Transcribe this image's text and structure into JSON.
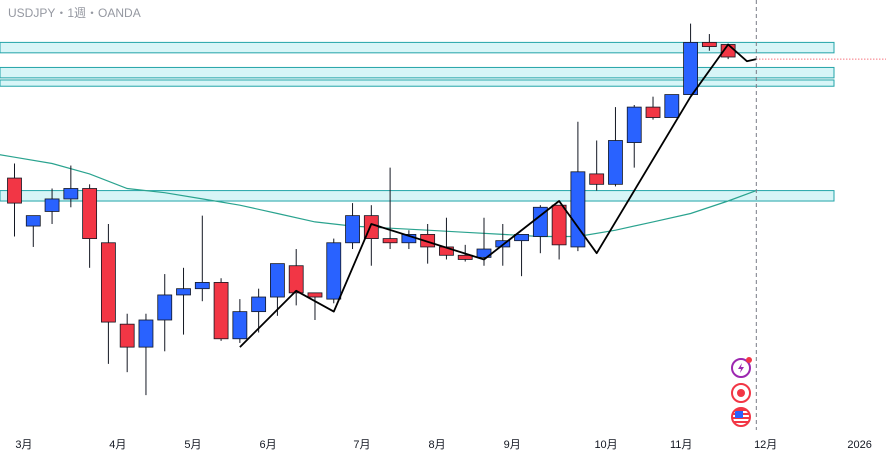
{
  "header": {
    "symbol_line": "USDJPY・1週・OANDA"
  },
  "colors": {
    "up": "#2962ff",
    "down": "#f23645",
    "zone_fill": "#d7f5f7",
    "zone_stroke": "#22a4a8",
    "moving_average": "#2aa38f",
    "trend_line": "#000000",
    "current_price_line": "#f23645",
    "cursor_line": "#787b86"
  },
  "icons": [
    "lightning-icon",
    "record-icon",
    "us-flag-icon"
  ],
  "chart_data": {
    "type": "candlestick",
    "title": "USDJPY・1週・OANDA",
    "x_tick_labels": [
      "3月",
      "4月",
      "5月",
      "6月",
      "7月",
      "8月",
      "9月",
      "10月",
      "11月",
      "12月",
      "2026"
    ],
    "x_tick_week_index": [
      0.5,
      5.5,
      9.5,
      13.5,
      18.5,
      22.5,
      26.5,
      31.5,
      35.5,
      40.0,
      45.0
    ],
    "ylim": [
      139.0,
      158.5
    ],
    "grid": false,
    "candles": [
      {
        "o": 150.4,
        "h": 151.1,
        "l": 147.6,
        "c": 149.2
      },
      {
        "o": 148.1,
        "h": 148.6,
        "l": 147.1,
        "c": 148.6
      },
      {
        "o": 148.8,
        "h": 149.9,
        "l": 148.2,
        "c": 149.4
      },
      {
        "o": 149.4,
        "h": 151.0,
        "l": 149.0,
        "c": 149.9
      },
      {
        "o": 149.9,
        "h": 150.1,
        "l": 146.1,
        "c": 147.5
      },
      {
        "o": 147.3,
        "h": 148.2,
        "l": 141.5,
        "c": 143.5
      },
      {
        "o": 143.4,
        "h": 143.9,
        "l": 141.1,
        "c": 142.3
      },
      {
        "o": 142.3,
        "h": 143.9,
        "l": 140.0,
        "c": 143.6
      },
      {
        "o": 143.6,
        "h": 145.8,
        "l": 142.1,
        "c": 144.8
      },
      {
        "o": 144.8,
        "h": 146.1,
        "l": 142.9,
        "c": 145.1
      },
      {
        "o": 145.1,
        "h": 148.6,
        "l": 144.5,
        "c": 145.4
      },
      {
        "o": 145.4,
        "h": 145.6,
        "l": 142.6,
        "c": 142.7
      },
      {
        "o": 142.7,
        "h": 144.6,
        "l": 142.5,
        "c": 144.0
      },
      {
        "o": 144.0,
        "h": 145.1,
        "l": 143.0,
        "c": 144.7
      },
      {
        "o": 144.7,
        "h": 146.3,
        "l": 143.8,
        "c": 146.3
      },
      {
        "o": 146.2,
        "h": 147.0,
        "l": 144.3,
        "c": 144.9
      },
      {
        "o": 144.9,
        "h": 144.9,
        "l": 143.6,
        "c": 144.7
      },
      {
        "o": 144.6,
        "h": 147.5,
        "l": 144.4,
        "c": 147.3
      },
      {
        "o": 147.3,
        "h": 149.2,
        "l": 147.0,
        "c": 148.6
      },
      {
        "o": 148.6,
        "h": 149.1,
        "l": 146.2,
        "c": 147.5
      },
      {
        "o": 147.5,
        "h": 150.9,
        "l": 147.0,
        "c": 147.3
      },
      {
        "o": 147.3,
        "h": 147.9,
        "l": 147.0,
        "c": 147.7
      },
      {
        "o": 147.7,
        "h": 148.2,
        "l": 146.3,
        "c": 147.1
      },
      {
        "o": 147.1,
        "h": 148.5,
        "l": 146.5,
        "c": 146.7
      },
      {
        "o": 146.7,
        "h": 147.2,
        "l": 146.4,
        "c": 146.5
      },
      {
        "o": 146.6,
        "h": 148.5,
        "l": 146.2,
        "c": 147.0
      },
      {
        "o": 147.1,
        "h": 148.2,
        "l": 146.2,
        "c": 147.4
      },
      {
        "o": 147.4,
        "h": 147.6,
        "l": 145.7,
        "c": 147.7
      },
      {
        "o": 147.6,
        "h": 149.1,
        "l": 146.8,
        "c": 149.0
      },
      {
        "o": 149.1,
        "h": 149.1,
        "l": 146.5,
        "c": 147.2
      },
      {
        "o": 147.1,
        "h": 153.1,
        "l": 146.9,
        "c": 150.7
      },
      {
        "o": 150.6,
        "h": 152.2,
        "l": 149.8,
        "c": 150.1
      },
      {
        "o": 150.1,
        "h": 153.8,
        "l": 150.0,
        "c": 152.2
      },
      {
        "o": 152.1,
        "h": 153.9,
        "l": 150.9,
        "c": 153.8
      },
      {
        "o": 153.8,
        "h": 154.3,
        "l": 153.2,
        "c": 153.3
      },
      {
        "o": 153.3,
        "h": 154.3,
        "l": 153.3,
        "c": 154.4
      },
      {
        "o": 154.4,
        "h": 157.8,
        "l": 154.4,
        "c": 156.9
      },
      {
        "o": 156.9,
        "h": 157.3,
        "l": 156.5,
        "c": 156.7
      },
      {
        "o": 156.8,
        "h": 156.8,
        "l": 156.1,
        "c": 156.2
      }
    ],
    "moving_average": [
      {
        "week": -2,
        "value": 151.7
      },
      {
        "week": 0,
        "value": 151.4
      },
      {
        "week": 2,
        "value": 151.1
      },
      {
        "week": 4,
        "value": 150.6
      },
      {
        "week": 6,
        "value": 149.9
      },
      {
        "week": 8,
        "value": 149.7
      },
      {
        "week": 10,
        "value": 149.4
      },
      {
        "week": 12,
        "value": 149.1
      },
      {
        "week": 14,
        "value": 148.7
      },
      {
        "week": 16,
        "value": 148.3
      },
      {
        "week": 18,
        "value": 148.1
      },
      {
        "week": 20,
        "value": 148.0
      },
      {
        "week": 22,
        "value": 147.9
      },
      {
        "week": 24,
        "value": 147.8
      },
      {
        "week": 26,
        "value": 147.7
      },
      {
        "week": 28,
        "value": 147.6
      },
      {
        "week": 30,
        "value": 147.6
      },
      {
        "week": 32,
        "value": 147.9
      },
      {
        "week": 34,
        "value": 148.3
      },
      {
        "week": 36,
        "value": 148.7
      },
      {
        "week": 38,
        "value": 149.3
      },
      {
        "week": 39.5,
        "value": 149.8
      }
    ],
    "zones": [
      {
        "top": 156.9,
        "bottom": 156.4
      },
      {
        "top": 155.7,
        "bottom": 155.2
      },
      {
        "top": 155.1,
        "bottom": 154.8
      },
      {
        "top": 149.8,
        "bottom": 149.3
      }
    ],
    "trend_line": [
      {
        "week": 12,
        "price": 142.3
      },
      {
        "week": 15,
        "price": 145.0
      },
      {
        "week": 17,
        "price": 144.0
      },
      {
        "week": 19,
        "price": 148.2
      },
      {
        "week": 25,
        "price": 146.5
      },
      {
        "week": 29,
        "price": 149.3
      },
      {
        "week": 31,
        "price": 146.8
      },
      {
        "week": 36,
        "price": 154.3
      },
      {
        "week": 38,
        "price": 156.8
      },
      {
        "week": 39,
        "price": 156.0
      },
      {
        "week": 39.5,
        "price": 156.1
      }
    ],
    "current_price": 156.1,
    "cursor_week": 39.5
  }
}
